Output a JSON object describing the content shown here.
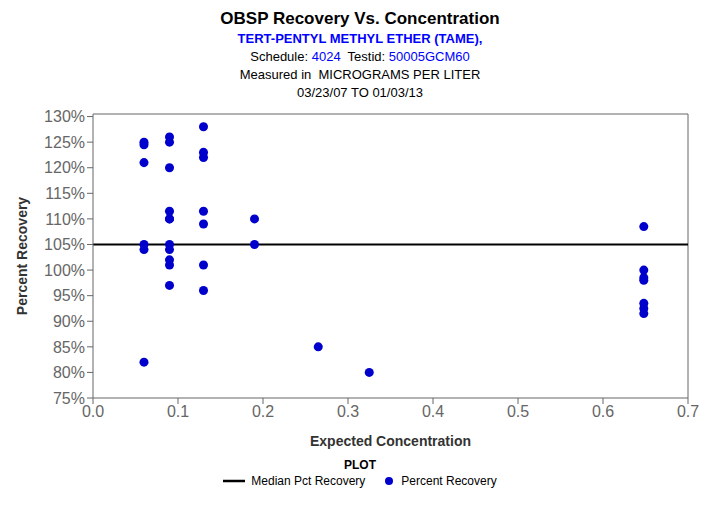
{
  "chart_data": {
    "type": "scatter",
    "title": "OBSP Recovery Vs. Concentration",
    "subtitle": [
      [
        {
          "text": "TERT-PENTYL METHYL ETHER (TAME),",
          "color": "blue"
        }
      ],
      [
        {
          "text": "Schedule: ",
          "color": "black"
        },
        {
          "text": "4024",
          "color": "blue"
        },
        {
          "text": "  Testid: ",
          "color": "black"
        },
        {
          "text": "50005GCM60",
          "color": "blue"
        }
      ],
      [
        {
          "text": "Measured in  MICROGRAMS PER LITER",
          "color": "black"
        }
      ],
      [
        {
          "text": "03/23/07 TO 01/03/13",
          "color": "black"
        }
      ]
    ],
    "x_label": "Expected Concentration",
    "y_label": "Percent Recovery",
    "series": [
      {
        "name": "Median Pct Recovery",
        "type": "hline",
        "color": "#000000",
        "values": [
          1.05
        ]
      },
      {
        "name": "Percent Recovery",
        "type": "scatter",
        "color": "#0000cc",
        "marker": "circle",
        "x": [
          0.06,
          0.06,
          0.06,
          0.06,
          0.06,
          0.06,
          0.09,
          0.09,
          0.09,
          0.09,
          0.09,
          0.09,
          0.09,
          0.09,
          0.09,
          0.09,
          0.09,
          0.13,
          0.13,
          0.13,
          0.13,
          0.13,
          0.13,
          0.13,
          0.19,
          0.19,
          0.265,
          0.325,
          0.648,
          0.648,
          0.648,
          0.648,
          0.648,
          0.648,
          0.648
        ],
        "values": [
          1.25,
          1.245,
          1.21,
          1.05,
          1.04,
          0.82,
          1.26,
          1.25,
          1.2,
          1.115,
          1.1,
          1.1,
          1.05,
          1.04,
          1.02,
          1.01,
          0.97,
          1.28,
          1.23,
          1.22,
          1.115,
          1.09,
          1.01,
          0.96,
          1.1,
          1.05,
          0.85,
          0.8,
          1.085,
          1.0,
          0.985,
          0.98,
          0.935,
          0.925,
          0.915
        ]
      }
    ],
    "xlim": [
      0.0,
      0.7
    ],
    "ylim": [
      0.75,
      1.305
    ],
    "xticks": [
      {
        "value": 0.0,
        "label": "0.0"
      },
      0.1,
      0.2,
      0.3,
      0.4,
      0.5,
      0.6,
      0.7
    ],
    "yticks": [
      {
        "value": 0.75,
        "label": "75%"
      },
      {
        "value": 0.8,
        "label": "80%"
      },
      {
        "value": 0.85,
        "label": "85%"
      },
      {
        "value": 0.9,
        "label": "90%"
      },
      {
        "value": 0.95,
        "label": "95%"
      },
      {
        "value": 1.0,
        "label": "100%"
      },
      {
        "value": 1.05,
        "label": "105%"
      },
      {
        "value": 1.1,
        "label": "110%"
      },
      {
        "value": 1.15,
        "label": "115%"
      },
      {
        "value": 1.2,
        "label": "120%"
      },
      {
        "value": 1.25,
        "label": "125%"
      },
      {
        "value": 1.3,
        "label": "130%"
      }
    ],
    "grid": false,
    "legend": "bottom",
    "legend_title": "PLOT"
  }
}
